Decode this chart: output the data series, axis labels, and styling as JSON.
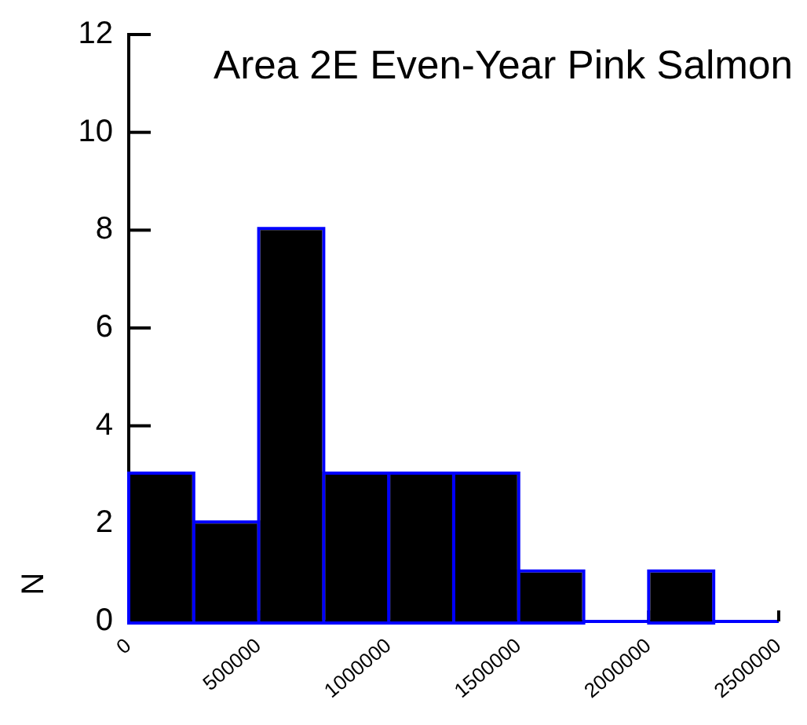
{
  "chart_data": {
    "type": "histogram",
    "title": "Area 2E Even-Year Pink Salmon",
    "ylabel": "N",
    "bins": [
      0,
      250000,
      500000,
      750000,
      1000000,
      1250000,
      1500000,
      1750000,
      2000000,
      2250000,
      2500000
    ],
    "values": [
      3,
      2,
      8,
      3,
      3,
      3,
      1,
      0,
      1,
      0
    ],
    "color": "#000000",
    "xlim": [
      0,
      2500000
    ],
    "xticks": [
      0,
      500000,
      1000000,
      1500000,
      2000000,
      2500000
    ],
    "ylim": [
      0,
      12
    ],
    "yticks": [
      0,
      2,
      4,
      6,
      8,
      10,
      12
    ],
    "grid": false,
    "legend": false
  }
}
